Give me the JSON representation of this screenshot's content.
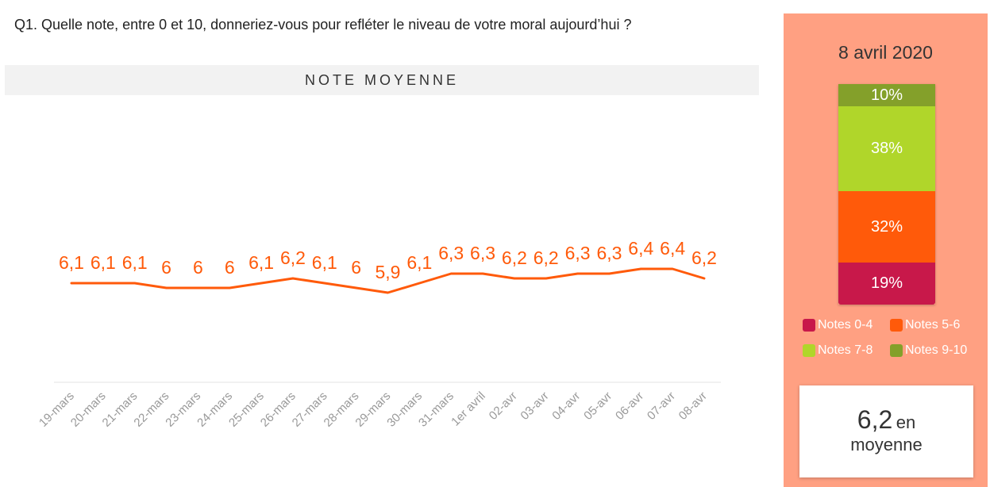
{
  "question": "Q1. Quelle note, entre 0 et 10, donneriez-vous pour refléter le niveau de votre moral aujourd’hui ?",
  "chart_header": "NOTE MOYENNE",
  "chart_data": [
    {
      "type": "line",
      "title": "NOTE MOYENNE",
      "categories": [
        "19-mars",
        "20-mars",
        "21-mars",
        "22-mars",
        "23-mars",
        "24-mars",
        "25-mars",
        "26-mars",
        "27-mars",
        "28-mars",
        "29-mars",
        "30-mars",
        "31-mars",
        "1er avril",
        "02-avr",
        "03-avr",
        "04-avr",
        "05-avr",
        "06-avr",
        "07-avr",
        "08-avr"
      ],
      "values": [
        6.1,
        6.1,
        6.1,
        6,
        6,
        6,
        6.1,
        6.2,
        6.1,
        6,
        5.9,
        6.1,
        6.3,
        6.3,
        6.2,
        6.2,
        6.3,
        6.3,
        6.4,
        6.4,
        6.2
      ],
      "value_labels": [
        "6,1",
        "6,1",
        "6,1",
        "6",
        "6",
        "6",
        "6,1",
        "6,2",
        "6,1",
        "6",
        "5,9",
        "6,1",
        "6,3",
        "6,3",
        "6,2",
        "6,2",
        "6,3",
        "6,3",
        "6,4",
        "6,4",
        "6,2"
      ],
      "color": "#ff5a0a",
      "grid": false
    },
    {
      "type": "bar",
      "stacked": true,
      "title": "8 avril 2020",
      "categories": [
        "8 avril 2020"
      ],
      "series": [
        {
          "name": "Notes 0-4",
          "value": 19,
          "label": "19%",
          "color": "#c8184a"
        },
        {
          "name": "Notes 5-6",
          "value": 32,
          "label": "32%",
          "color": "#ff5a0a"
        },
        {
          "name": "Notes 7-8",
          "value": 38,
          "label": "38%",
          "color": "#b0d62a"
        },
        {
          "name": "Notes 9-10",
          "value": 10,
          "label": "10%",
          "color": "#84a02a"
        }
      ],
      "legend_position": "bottom"
    }
  ],
  "panel": {
    "date": "8 avril 2020",
    "average_value": "6,2",
    "average_unit": "en",
    "average_label": "moyenne"
  },
  "colors": {
    "panel_background": "#ffa082",
    "line": "#ff5a0a",
    "header_background": "#f2f2f2"
  }
}
